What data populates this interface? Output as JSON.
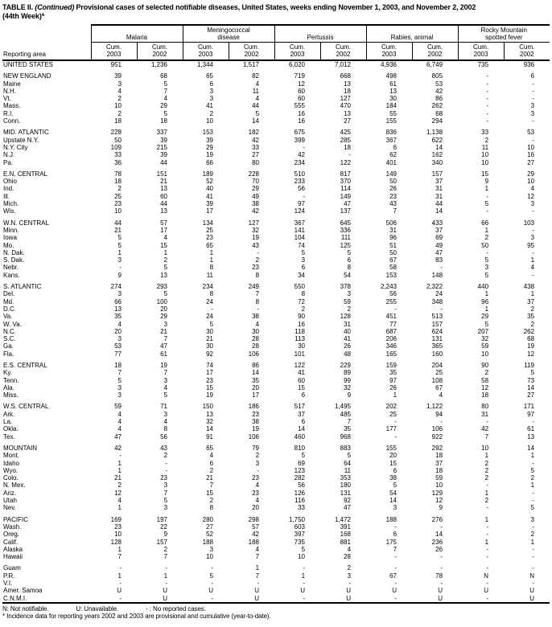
{
  "title": {
    "prefix": "TABLE II.",
    "continued": "(Continued)",
    "rest": "Provisional cases of selected notifiable diseases, United States, weeks ending November 1, 2003, and November 2, 2002",
    "line2": "(44th Week)*"
  },
  "table": {
    "reporting_area_label": "Reporting area",
    "groups": [
      {
        "lines": [
          "Malaria"
        ]
      },
      {
        "lines": [
          "Meningococcal",
          "disease"
        ]
      },
      {
        "lines": [
          "Pertussis"
        ]
      },
      {
        "lines": [
          "Rabies, animal"
        ]
      },
      {
        "lines": [
          "Rocky Mountain",
          "spotted fever"
        ]
      }
    ],
    "subheader": {
      "cum": "Cum.",
      "years": [
        "2003",
        "2002"
      ]
    },
    "rows": [
      {
        "area": "UNITED STATES",
        "values": [
          "951",
          "1,236",
          "1,344",
          "1,517",
          "6,020",
          "7,012",
          "4,936",
          "6,749",
          "735",
          "936"
        ]
      },
      {
        "area": "NEW ENGLAND",
        "spacer_before": true,
        "values": [
          "39",
          "68",
          "65",
          "82",
          "719",
          "668",
          "498",
          "805",
          "-",
          "6"
        ]
      },
      {
        "area": "Maine",
        "values": [
          "3",
          "5",
          "6",
          "4",
          "12",
          "13",
          "61",
          "53",
          "-",
          "-"
        ]
      },
      {
        "area": "N.H.",
        "values": [
          "4",
          "7",
          "3",
          "11",
          "60",
          "18",
          "13",
          "42",
          "-",
          "-"
        ]
      },
      {
        "area": "Vt.",
        "values": [
          "2",
          "4",
          "3",
          "4",
          "60",
          "127",
          "30",
          "86",
          "-",
          "-"
        ]
      },
      {
        "area": "Mass.",
        "values": [
          "10",
          "29",
          "41",
          "44",
          "555",
          "470",
          "184",
          "262",
          "-",
          "3"
        ]
      },
      {
        "area": "R.I.",
        "values": [
          "2",
          "5",
          "2",
          "5",
          "16",
          "13",
          "55",
          "68",
          "-",
          "3"
        ]
      },
      {
        "area": "Conn.",
        "values": [
          "18",
          "18",
          "10",
          "14",
          "16",
          "27",
          "155",
          "294",
          "-",
          "-"
        ]
      },
      {
        "area": "MID. ATLANTIC",
        "spacer_before": true,
        "values": [
          "228",
          "337",
          "153",
          "182",
          "675",
          "425",
          "836",
          "1,138",
          "33",
          "53"
        ]
      },
      {
        "area": "Upstate N.Y.",
        "values": [
          "50",
          "39",
          "39",
          "42",
          "399",
          "285",
          "367",
          "622",
          "2",
          "-"
        ]
      },
      {
        "area": "N.Y. City",
        "values": [
          "109",
          "215",
          "29",
          "33",
          "-",
          "18",
          "6",
          "14",
          "11",
          "10"
        ]
      },
      {
        "area": "N.J.",
        "values": [
          "33",
          "39",
          "19",
          "27",
          "42",
          "-",
          "62",
          "162",
          "10",
          "16"
        ]
      },
      {
        "area": "Pa.",
        "values": [
          "36",
          "44",
          "66",
          "80",
          "234",
          "122",
          "401",
          "340",
          "10",
          "27"
        ]
      },
      {
        "area": "E.N. CENTRAL",
        "spacer_before": true,
        "values": [
          "78",
          "151",
          "189",
          "228",
          "510",
          "817",
          "149",
          "157",
          "15",
          "29"
        ]
      },
      {
        "area": "Ohio",
        "values": [
          "18",
          "21",
          "52",
          "70",
          "233",
          "370",
          "50",
          "37",
          "9",
          "10"
        ]
      },
      {
        "area": "Ind.",
        "values": [
          "2",
          "13",
          "40",
          "29",
          "56",
          "114",
          "26",
          "31",
          "1",
          "4"
        ]
      },
      {
        "area": "Ill.",
        "values": [
          "25",
          "60",
          "41",
          "49",
          "-",
          "149",
          "23",
          "31",
          "-",
          "12"
        ]
      },
      {
        "area": "Mich.",
        "values": [
          "23",
          "44",
          "39",
          "38",
          "97",
          "47",
          "43",
          "44",
          "5",
          "3"
        ]
      },
      {
        "area": "Wis.",
        "values": [
          "10",
          "13",
          "17",
          "42",
          "124",
          "137",
          "7",
          "14",
          "-",
          "-"
        ]
      },
      {
        "area": "W.N. CENTRAL",
        "spacer_before": true,
        "values": [
          "44",
          "57",
          "134",
          "127",
          "367",
          "645",
          "506",
          "433",
          "66",
          "103"
        ]
      },
      {
        "area": "Minn.",
        "values": [
          "21",
          "17",
          "25",
          "32",
          "141",
          "336",
          "31",
          "37",
          "1",
          "-"
        ]
      },
      {
        "area": "Iowa",
        "values": [
          "5",
          "4",
          "23",
          "19",
          "104",
          "111",
          "96",
          "69",
          "2",
          "3"
        ]
      },
      {
        "area": "Mo.",
        "values": [
          "5",
          "15",
          "65",
          "43",
          "74",
          "125",
          "51",
          "49",
          "50",
          "95"
        ]
      },
      {
        "area": "N. Dak.",
        "values": [
          "1",
          "1",
          "1",
          "-",
          "5",
          "5",
          "50",
          "47",
          "-",
          "-"
        ]
      },
      {
        "area": "S. Dak.",
        "values": [
          "3",
          "2",
          "1",
          "2",
          "3",
          "6",
          "67",
          "83",
          "5",
          "1"
        ]
      },
      {
        "area": "Nebr.",
        "values": [
          "-",
          "5",
          "8",
          "23",
          "6",
          "8",
          "58",
          "-",
          "3",
          "4"
        ]
      },
      {
        "area": "Kans.",
        "values": [
          "9",
          "13",
          "11",
          "8",
          "34",
          "54",
          "153",
          "148",
          "5",
          "-"
        ]
      },
      {
        "area": "S. ATLANTIC",
        "spacer_before": true,
        "values": [
          "274",
          "293",
          "234",
          "249",
          "550",
          "378",
          "2,243",
          "2,322",
          "440",
          "438"
        ]
      },
      {
        "area": "Del.",
        "values": [
          "3",
          "5",
          "8",
          "7",
          "8",
          "3",
          "56",
          "24",
          "1",
          "1"
        ]
      },
      {
        "area": "Md.",
        "values": [
          "66",
          "100",
          "24",
          "8",
          "72",
          "59",
          "255",
          "348",
          "96",
          "37"
        ]
      },
      {
        "area": "D.C.",
        "values": [
          "13",
          "20",
          "-",
          "-",
          "2",
          "2",
          "-",
          "-",
          "1",
          "2"
        ]
      },
      {
        "area": "Va.",
        "values": [
          "35",
          "29",
          "24",
          "38",
          "90",
          "128",
          "451",
          "513",
          "29",
          "35"
        ]
      },
      {
        "area": "W. Va.",
        "values": [
          "4",
          "3",
          "5",
          "4",
          "16",
          "31",
          "77",
          "157",
          "5",
          "2"
        ]
      },
      {
        "area": "N.C.",
        "values": [
          "20",
          "21",
          "30",
          "30",
          "118",
          "40",
          "687",
          "624",
          "207",
          "262"
        ]
      },
      {
        "area": "S.C.",
        "values": [
          "3",
          "7",
          "21",
          "28",
          "113",
          "41",
          "206",
          "131",
          "32",
          "68"
        ]
      },
      {
        "area": "Ga.",
        "values": [
          "53",
          "47",
          "30",
          "28",
          "30",
          "26",
          "346",
          "365",
          "59",
          "19"
        ]
      },
      {
        "area": "Fla.",
        "values": [
          "77",
          "61",
          "92",
          "106",
          "101",
          "48",
          "165",
          "160",
          "10",
          "12"
        ]
      },
      {
        "area": "E.S. CENTRAL",
        "spacer_before": true,
        "values": [
          "18",
          "19",
          "74",
          "86",
          "122",
          "229",
          "159",
          "204",
          "90",
          "119"
        ]
      },
      {
        "area": "Ky.",
        "values": [
          "7",
          "7",
          "17",
          "14",
          "41",
          "89",
          "35",
          "25",
          "2",
          "5"
        ]
      },
      {
        "area": "Tenn.",
        "values": [
          "5",
          "3",
          "23",
          "35",
          "60",
          "99",
          "97",
          "108",
          "58",
          "73"
        ]
      },
      {
        "area": "Ala.",
        "values": [
          "3",
          "4",
          "15",
          "20",
          "15",
          "32",
          "26",
          "67",
          "12",
          "14"
        ]
      },
      {
        "area": "Miss.",
        "values": [
          "3",
          "5",
          "19",
          "17",
          "6",
          "9",
          "1",
          "4",
          "18",
          "27"
        ]
      },
      {
        "area": "W.S. CENTRAL",
        "spacer_before": true,
        "values": [
          "59",
          "71",
          "150",
          "186",
          "517",
          "1,495",
          "202",
          "1,122",
          "80",
          "171"
        ]
      },
      {
        "area": "Ark.",
        "values": [
          "4",
          "3",
          "13",
          "23",
          "37",
          "485",
          "25",
          "94",
          "31",
          "97"
        ]
      },
      {
        "area": "La.",
        "values": [
          "4",
          "4",
          "32",
          "38",
          "6",
          "7",
          "-",
          "-",
          "-",
          "-"
        ]
      },
      {
        "area": "Okla.",
        "values": [
          "4",
          "8",
          "14",
          "19",
          "14",
          "35",
          "177",
          "106",
          "42",
          "61"
        ]
      },
      {
        "area": "Tex.",
        "values": [
          "47",
          "56",
          "91",
          "106",
          "460",
          "968",
          "-",
          "922",
          "7",
          "13"
        ]
      },
      {
        "area": "MOUNTAIN",
        "spacer_before": true,
        "values": [
          "42",
          "43",
          "65",
          "79",
          "810",
          "883",
          "155",
          "292",
          "10",
          "14"
        ]
      },
      {
        "area": "Mont.",
        "values": [
          "-",
          "2",
          "4",
          "2",
          "5",
          "5",
          "20",
          "18",
          "1",
          "1"
        ]
      },
      {
        "area": "Idaho",
        "values": [
          "1",
          "-",
          "6",
          "3",
          "69",
          "64",
          "15",
          "37",
          "2",
          "-"
        ]
      },
      {
        "area": "Wyo.",
        "values": [
          "1",
          "-",
          "2",
          "-",
          "123",
          "11",
          "6",
          "18",
          "2",
          "5"
        ]
      },
      {
        "area": "Colo.",
        "values": [
          "21",
          "23",
          "21",
          "23",
          "282",
          "353",
          "38",
          "59",
          "2",
          "2"
        ]
      },
      {
        "area": "N. Mex.",
        "values": [
          "2",
          "3",
          "7",
          "4",
          "56",
          "180",
          "5",
          "10",
          "-",
          "1"
        ]
      },
      {
        "area": "Ariz.",
        "values": [
          "12",
          "7",
          "15",
          "23",
          "126",
          "131",
          "54",
          "129",
          "1",
          "-"
        ]
      },
      {
        "area": "Utah",
        "values": [
          "4",
          "5",
          "2",
          "4",
          "116",
          "92",
          "14",
          "12",
          "2",
          "-"
        ]
      },
      {
        "area": "Nev.",
        "values": [
          "1",
          "3",
          "8",
          "20",
          "33",
          "47",
          "3",
          "9",
          "-",
          "5"
        ]
      },
      {
        "area": "PACIFIC",
        "spacer_before": true,
        "values": [
          "169",
          "197",
          "280",
          "298",
          "1,750",
          "1,472",
          "188",
          "276",
          "1",
          "3"
        ]
      },
      {
        "area": "Wash.",
        "values": [
          "23",
          "22",
          "27",
          "57",
          "603",
          "391",
          "-",
          "-",
          "-",
          "-"
        ]
      },
      {
        "area": "Oreg.",
        "values": [
          "10",
          "9",
          "52",
          "42",
          "397",
          "168",
          "6",
          "14",
          "-",
          "2"
        ]
      },
      {
        "area": "Calif.",
        "values": [
          "128",
          "157",
          "188",
          "188",
          "735",
          "881",
          "175",
          "236",
          "1",
          "1"
        ]
      },
      {
        "area": "Alaska",
        "values": [
          "1",
          "2",
          "3",
          "4",
          "5",
          "4",
          "7",
          "26",
          "-",
          "-"
        ]
      },
      {
        "area": "Hawaii",
        "values": [
          "7",
          "7",
          "10",
          "7",
          "10",
          "28",
          "-",
          "-",
          "-",
          "-"
        ]
      },
      {
        "area": "Guam",
        "spacer_before": true,
        "values": [
          "-",
          "-",
          "-",
          "1",
          "-",
          "2",
          "-",
          "-",
          "-",
          "-"
        ]
      },
      {
        "area": "P.R.",
        "values": [
          "1",
          "1",
          "5",
          "7",
          "1",
          "3",
          "67",
          "78",
          "N",
          "N"
        ]
      },
      {
        "area": "V.I.",
        "values": [
          "-",
          "-",
          "-",
          "-",
          "-",
          "-",
          "-",
          "-",
          "-",
          "-"
        ]
      },
      {
        "area": "Amer. Samoa",
        "values": [
          "U",
          "U",
          "U",
          "U",
          "U",
          "U",
          "U",
          "U",
          "U",
          "U"
        ]
      },
      {
        "area": "C.N.M.I.",
        "values": [
          "-",
          "U",
          "-",
          "U",
          "-",
          "U",
          "-",
          "U",
          "-",
          "U"
        ]
      }
    ]
  },
  "footnotes": {
    "legend_n": "N: Not notifiable.",
    "legend_u": "U: Unavailable.",
    "legend_dash": "- : No reported cases.",
    "asterisk": "* Incidence data for reporting years 2002 and 2003 are provisional and cumulative (year-to-date)."
  }
}
